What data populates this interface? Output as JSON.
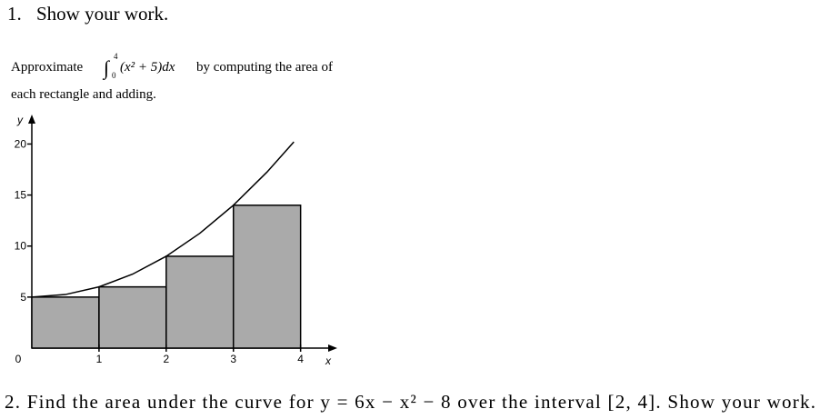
{
  "problem_1": {
    "number": "1.",
    "text": "Show your work."
  },
  "prompt": {
    "before": "Approximate",
    "integral_sign": "∫",
    "upper_limit": "4",
    "lower_limit": "0",
    "integrand": "(x² + 5)dx",
    "after": "by computing the area of",
    "line_2": "each rectangle and adding."
  },
  "chart_data": {
    "type": "bar",
    "x_label": "x",
    "y_label": "y",
    "x": [
      0,
      1,
      2,
      3
    ],
    "values": [
      5,
      6,
      9,
      14
    ],
    "bar_width": 1,
    "color": "#aaaaaa",
    "curve": {
      "x": [
        0,
        0.5,
        1,
        1.5,
        2,
        2.5,
        3,
        3.5,
        3.9
      ],
      "y": [
        5,
        5.25,
        6,
        7.25,
        9,
        11.25,
        14,
        17.25,
        20.21
      ]
    },
    "xlim": [
      0,
      4.6
    ],
    "ylim": [
      0,
      22
    ],
    "xticks": [
      1,
      2,
      3,
      4
    ],
    "yticks": [
      0,
      5,
      10,
      15,
      20
    ]
  },
  "problem_2": {
    "text": "2. Find the area under the curve for  y = 6x − x² − 8 over the interval [2, 4]. Show your work."
  }
}
